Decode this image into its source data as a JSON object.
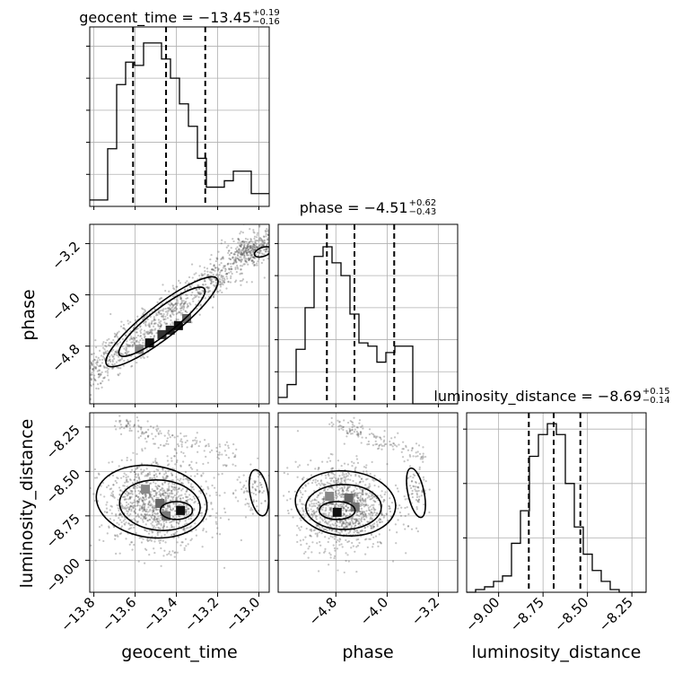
{
  "chart_data": {
    "type": "corner",
    "parameters": [
      "geocent_time",
      "phase",
      "luminosity_distance"
    ],
    "titles": [
      {
        "name": "geocent_time",
        "median": "−13.45",
        "plus": "+0.19",
        "minus": "−0.16"
      },
      {
        "name": "phase",
        "median": "−4.51",
        "plus": "+0.62",
        "minus": "−0.43"
      },
      {
        "name": "luminosity_distance",
        "median": "−8.69",
        "plus": "+0.15",
        "minus": "−0.14"
      }
    ],
    "axes": {
      "geocent_time": {
        "lim": [
          -13.82,
          -12.95
        ],
        "ticks": [
          -13.8,
          -13.6,
          -13.4,
          -13.2,
          -13.0
        ],
        "tick_labels": [
          "−13.8",
          "−13.6",
          "−13.4",
          "−13.2",
          "−13.0"
        ]
      },
      "phase": {
        "lim": [
          -5.7,
          -2.9
        ],
        "ticks": [
          -4.8,
          -4.0,
          -3.2
        ],
        "tick_labels": [
          "−4.8",
          "−4.0",
          "−3.2"
        ]
      },
      "luminosity_distance": {
        "lim": [
          -9.18,
          -8.17
        ],
        "ticks": [
          -9.0,
          -8.75,
          -8.5,
          -8.25
        ],
        "tick_labels": [
          "−9.00",
          "−8.75",
          "−8.50",
          "−8.25"
        ]
      }
    },
    "quantile_lines": {
      "geocent_time": [
        -13.61,
        -13.45,
        -13.26
      ],
      "phase": [
        -4.94,
        -4.51,
        -3.89
      ],
      "luminosity_distance": [
        -8.83,
        -8.69,
        -8.54
      ]
    },
    "histograms": {
      "geocent_time": {
        "edges_range": [
          -13.82,
          -12.95
        ],
        "counts": [
          0.02,
          0.02,
          0.18,
          0.38,
          0.45,
          0.44,
          0.51,
          0.51,
          0.46,
          0.4,
          0.32,
          0.25,
          0.15,
          0.06,
          0.06,
          0.08,
          0.11,
          0.11,
          0.04,
          0.04
        ],
        "ylim": [
          0,
          0.56
        ]
      },
      "phase": {
        "edges_range": [
          -5.7,
          -2.9
        ],
        "counts": [
          0.02,
          0.06,
          0.17,
          0.3,
          0.46,
          0.49,
          0.44,
          0.4,
          0.28,
          0.19,
          0.18,
          0.13,
          0.16,
          0.18,
          0.18,
          0.0,
          0.0,
          0.0,
          0.0,
          0.0
        ],
        "ylim": [
          0,
          0.56
        ]
      },
      "luminosity_distance": {
        "edges_range": [
          -9.18,
          -8.17
        ],
        "counts": [
          0.0,
          0.005,
          0.01,
          0.02,
          0.03,
          0.09,
          0.15,
          0.25,
          0.29,
          0.31,
          0.29,
          0.2,
          0.12,
          0.07,
          0.04,
          0.02,
          0.005,
          0.0,
          0.0,
          0.0
        ],
        "ylim": [
          0,
          0.33
        ]
      }
    },
    "grid": true
  }
}
